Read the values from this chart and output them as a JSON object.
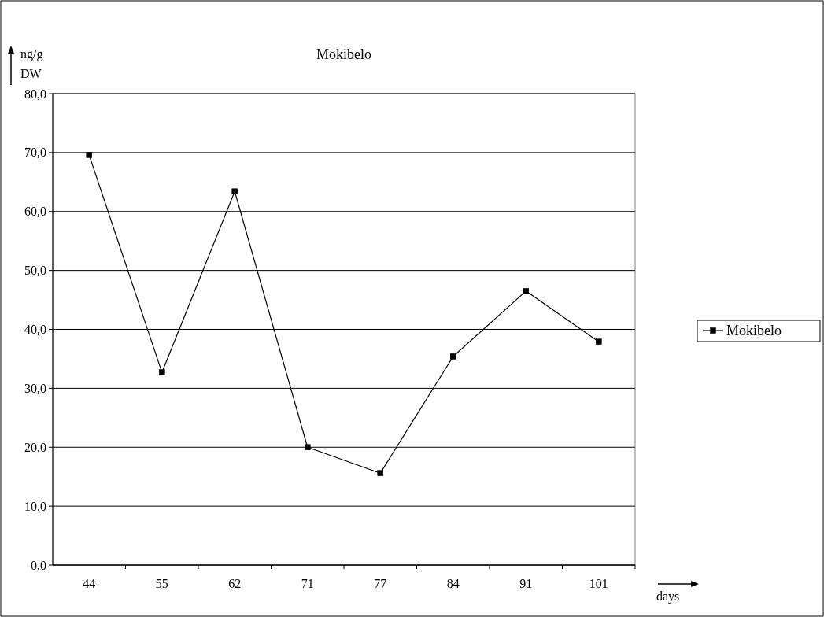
{
  "chart_data": {
    "type": "line",
    "title": "Mokibelo",
    "ylabel": "ng/g DW",
    "xlabel": "days",
    "categories": [
      "44",
      "55",
      "62",
      "71",
      "77",
      "84",
      "91",
      "101"
    ],
    "series": [
      {
        "name": "Mokibelo",
        "color": "#000000",
        "values": [
          69.6,
          32.7,
          63.4,
          20.0,
          15.6,
          35.4,
          46.5,
          37.9
        ]
      }
    ],
    "ylim": [
      0,
      80
    ],
    "yticks": [
      {
        "value": 0,
        "label": "0,0"
      },
      {
        "value": 10,
        "label": "10,0"
      },
      {
        "value": 20,
        "label": "20,0"
      },
      {
        "value": 30,
        "label": "30,0"
      },
      {
        "value": 40,
        "label": "40,0"
      },
      {
        "value": 50,
        "label": "50,0"
      },
      {
        "value": 60,
        "label": "60,0"
      },
      {
        "value": 70,
        "label": "70,0"
      },
      {
        "value": 80,
        "label": "80,0"
      }
    ],
    "grid": "y",
    "legend": "right",
    "marker": "square",
    "line_style": "solid"
  }
}
